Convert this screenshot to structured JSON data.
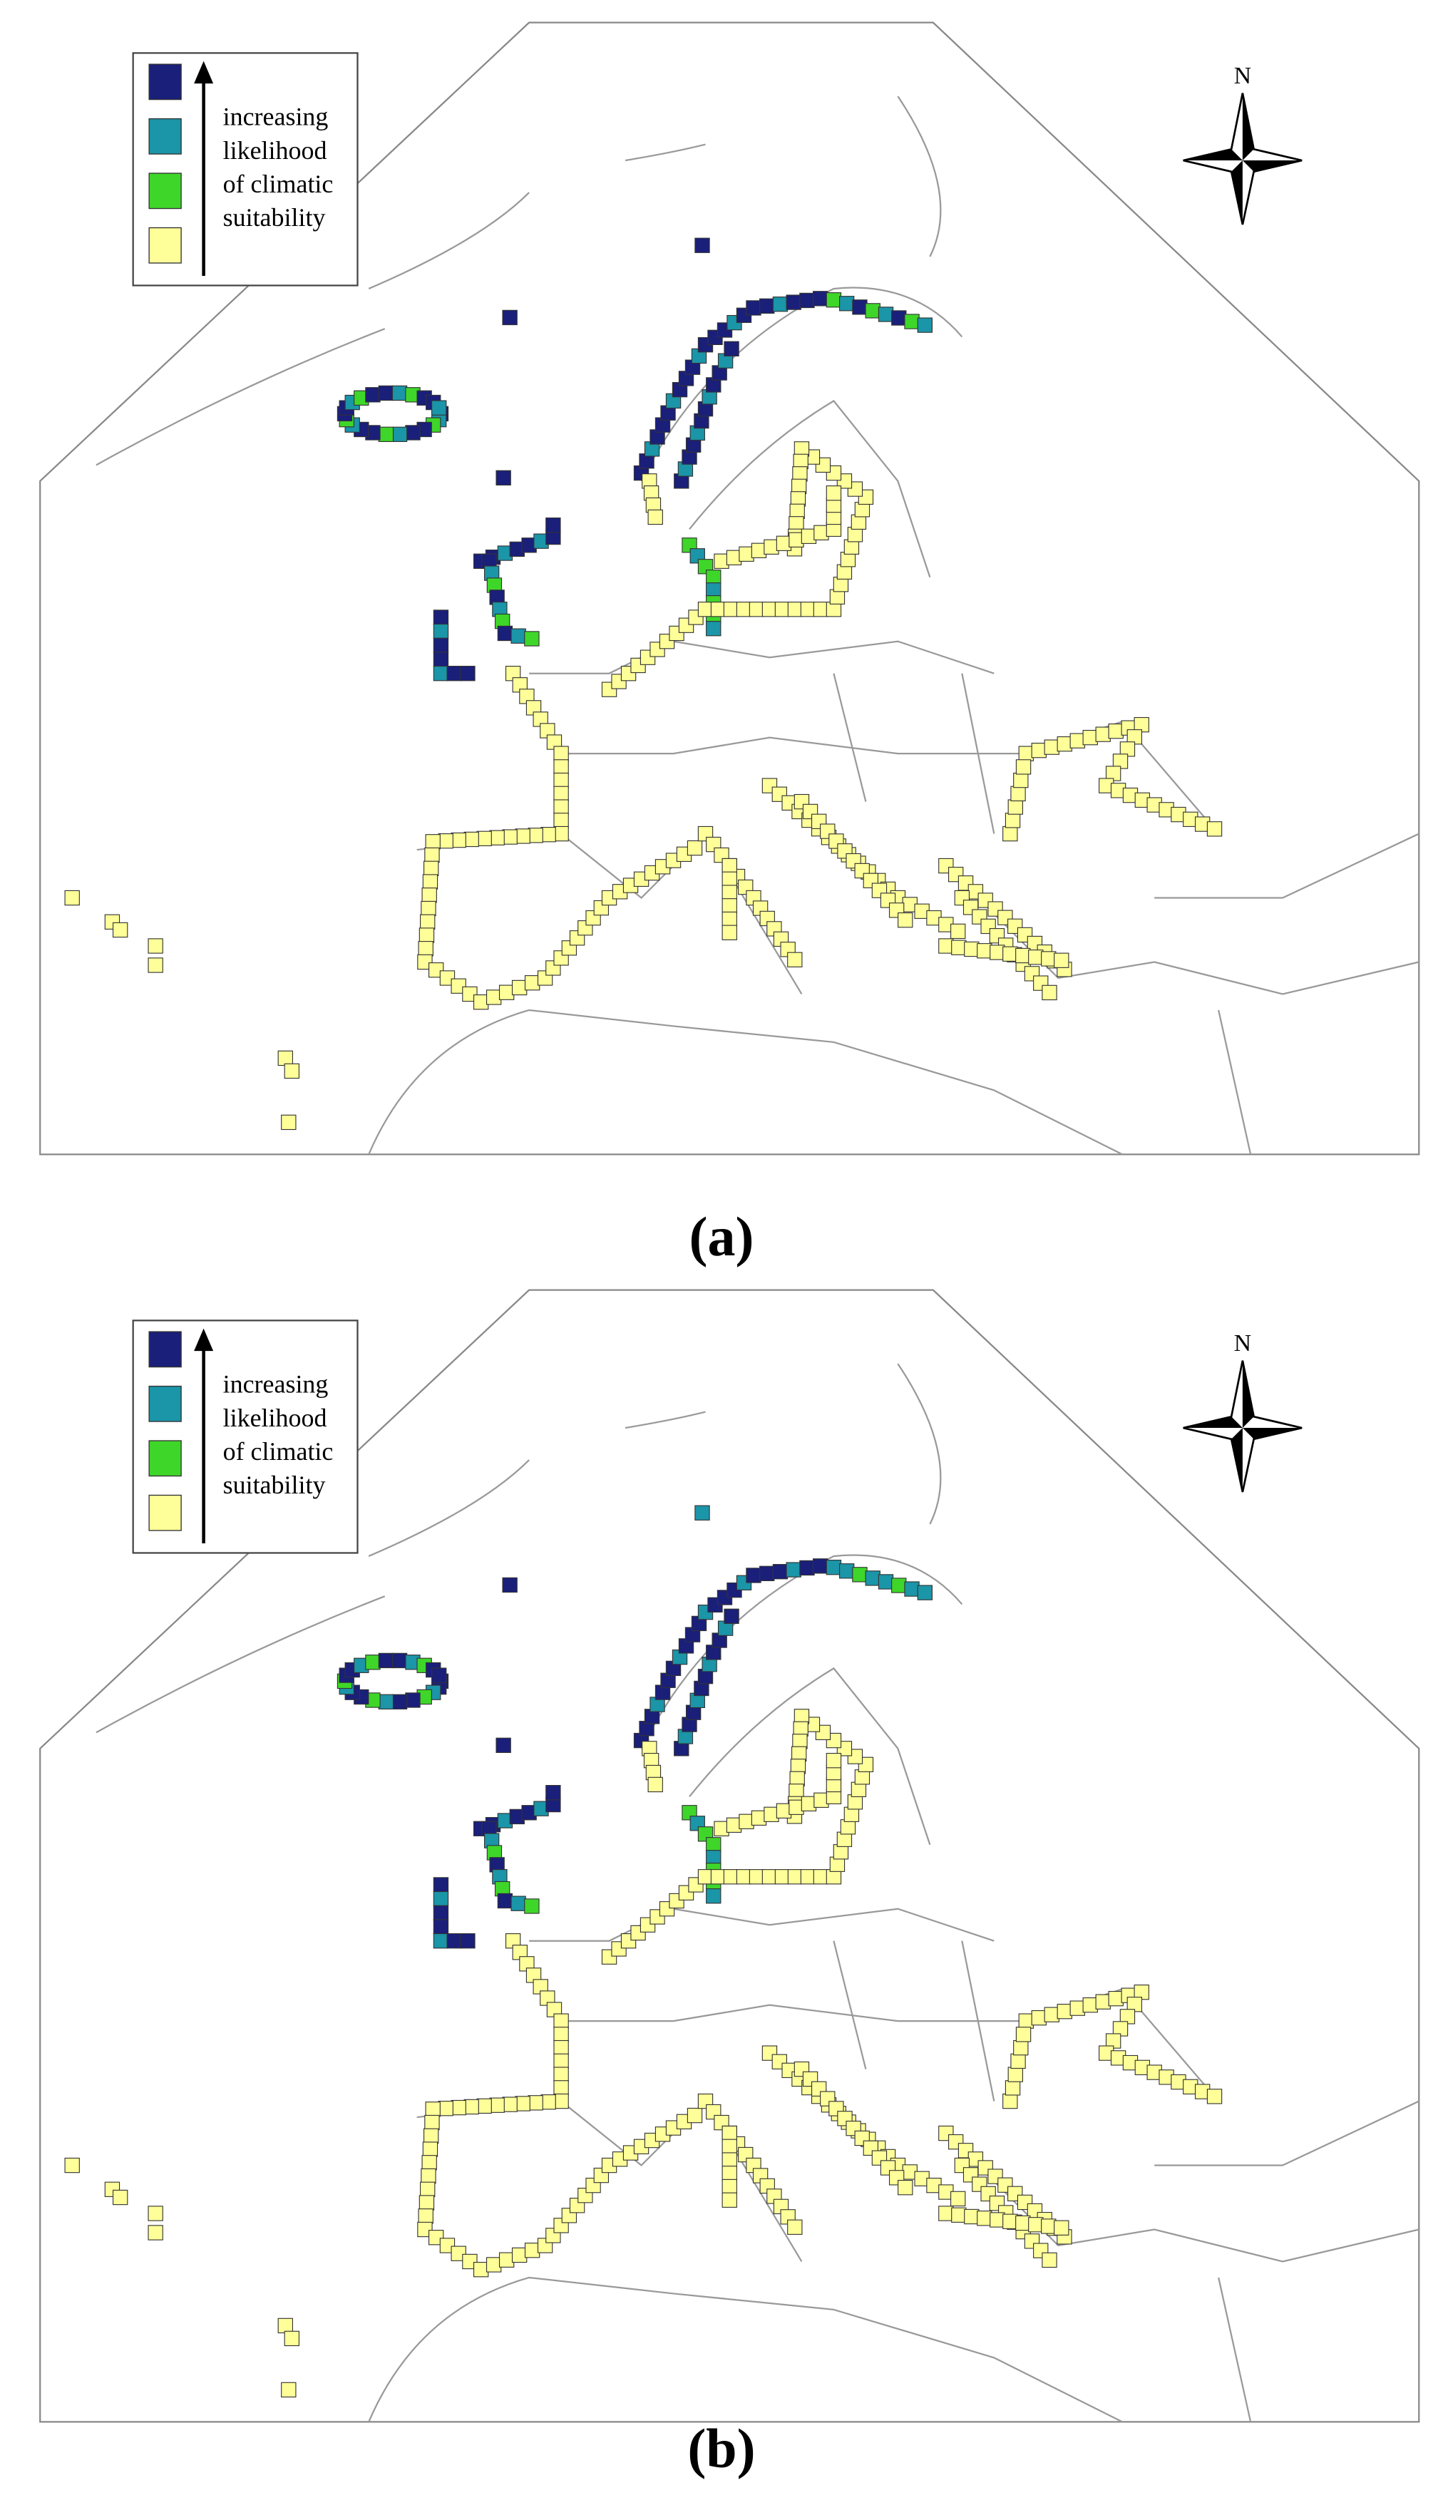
{
  "panels": [
    {
      "label": "(a)",
      "compass": "N",
      "legend": [
        "increasing",
        "likelihood",
        "of climatic",
        "suitability"
      ]
    },
    {
      "label": "(b)",
      "compass": "N",
      "legend": [
        "increasing",
        "likelihood",
        "of climatic",
        "suitability"
      ]
    }
  ]
}
